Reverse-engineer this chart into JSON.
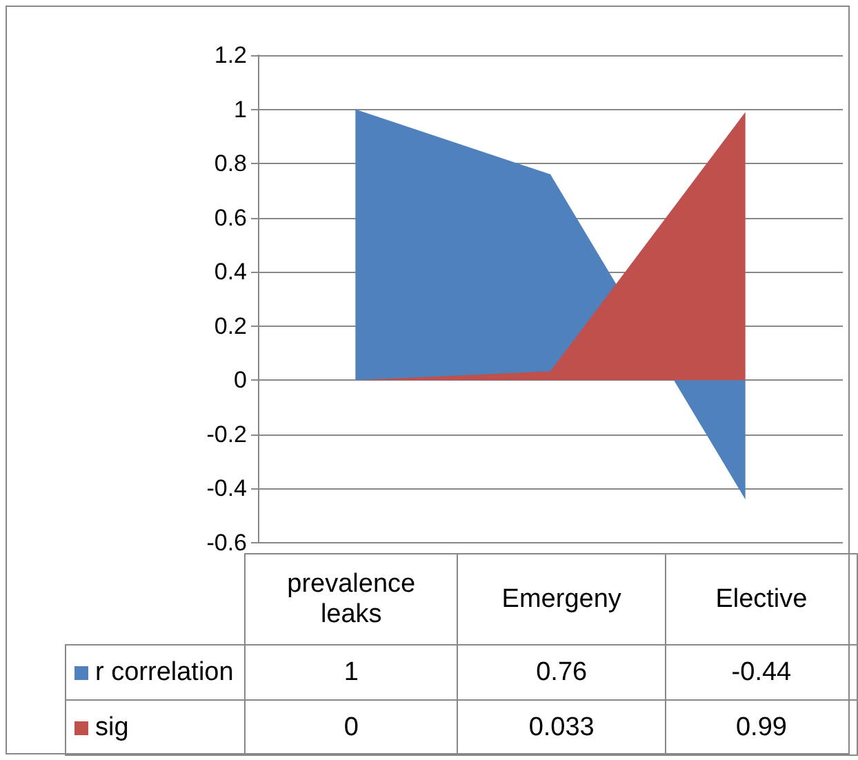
{
  "chart_data": {
    "type": "area",
    "categories": [
      "prevalence leaks",
      "Emergeny",
      "Elective"
    ],
    "series": [
      {
        "name": "r correlation",
        "color": "#4f81bd",
        "values": [
          1,
          0.76,
          -0.44
        ]
      },
      {
        "name": "sig",
        "color": "#c0504d",
        "values": [
          0,
          0.033,
          0.99
        ]
      }
    ],
    "ylim": [
      -0.6,
      1.2
    ],
    "yticks": [
      -0.6,
      -0.4,
      -0.2,
      0,
      0.2,
      0.4,
      0.6,
      0.8,
      1,
      1.2
    ],
    "grid": "y",
    "legend": "bottom",
    "data_labels": true
  }
}
